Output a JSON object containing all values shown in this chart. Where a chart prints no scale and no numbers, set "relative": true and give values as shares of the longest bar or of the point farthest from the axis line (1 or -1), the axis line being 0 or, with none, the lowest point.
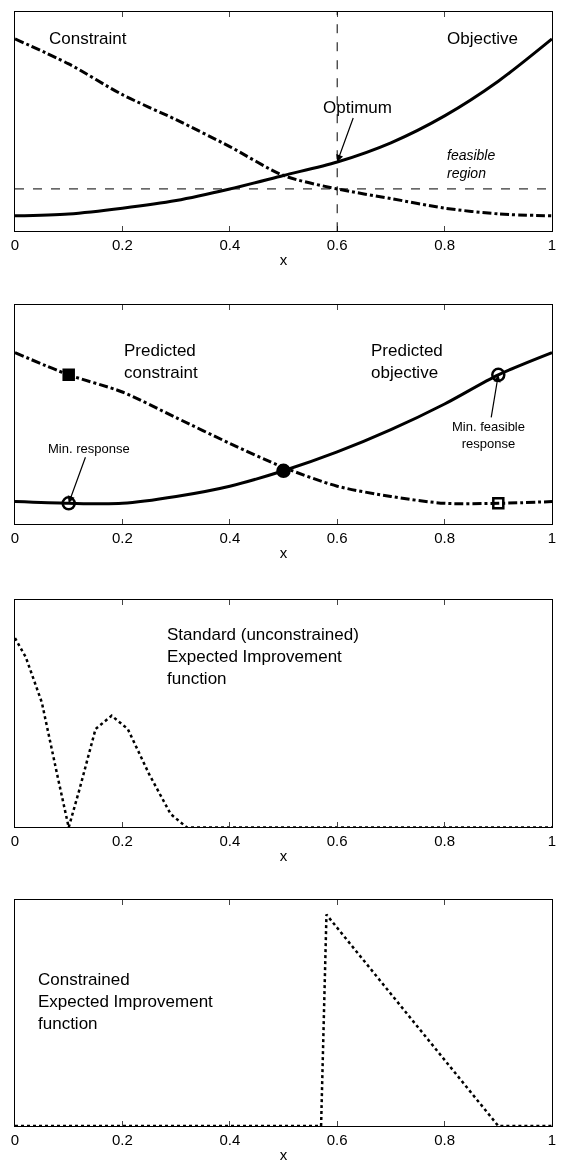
{
  "chart_data": [
    {
      "type": "line",
      "relative": true,
      "xlabel": "x",
      "xlim": [
        0,
        1
      ],
      "xticks": [
        0,
        0.2,
        0.4,
        0.6,
        0.8,
        1
      ],
      "x": [
        0,
        0.1,
        0.2,
        0.3,
        0.4,
        0.5,
        0.6,
        0.7,
        0.8,
        0.9,
        1
      ],
      "series": [
        {
          "name": "Constraint",
          "color": "#000000",
          "line_style": "dashdot",
          "values": [
            1,
            0.87,
            0.71,
            0.58,
            0.44,
            0.29,
            0.22,
            0.17,
            0.12,
            0.09,
            0.08
          ]
        },
        {
          "name": "Objective",
          "color": "#000000",
          "line_style": "solid",
          "values": [
            0.08,
            0.09,
            0.12,
            0.16,
            0.22,
            0.29,
            0.36,
            0.46,
            0.6,
            0.78,
            1
          ]
        }
      ],
      "ref_lines": [
        {
          "axis": "y",
          "value": 0.22,
          "label": "feasible\nregion",
          "line_style": "dashed",
          "color": "#000000"
        },
        {
          "axis": "x",
          "value": 0.6,
          "line_style": "dashed",
          "color": "#000000"
        }
      ],
      "annotations": [
        {
          "text": "Optimum",
          "x": 0.6,
          "y": 0.36
        }
      ]
    },
    {
      "type": "line",
      "relative": true,
      "xlabel": "x",
      "xlim": [
        0,
        1
      ],
      "xticks": [
        0,
        0.2,
        0.4,
        0.6,
        0.8,
        1
      ],
      "x": [
        0,
        0.1,
        0.2,
        0.3,
        0.4,
        0.5,
        0.6,
        0.7,
        0.8,
        0.9,
        1
      ],
      "series": [
        {
          "name": "Predicted\nconstraint",
          "color": "#000000",
          "line_style": "dashdot",
          "values": [
            1,
            0.87,
            0.77,
            0.62,
            0.47,
            0.33,
            0.22,
            0.16,
            0.12,
            0.12,
            0.13
          ]
        },
        {
          "name": "Predicted\nobjective",
          "color": "#000000",
          "line_style": "solid",
          "values": [
            0.13,
            0.12,
            0.12,
            0.16,
            0.22,
            0.31,
            0.42,
            0.55,
            0.7,
            0.87,
            1
          ]
        },
        {
          "type": "scatter",
          "marker": "square",
          "color": "#000000",
          "x": [
            0.1
          ],
          "values": [
            0.87
          ]
        },
        {
          "type": "scatter",
          "marker": "circle",
          "color": "#000000",
          "x": [
            0.5
          ],
          "values": [
            0.31
          ]
        },
        {
          "type": "scatter",
          "marker": "circle-open",
          "color": "#000000",
          "x": [
            0.1,
            0.9
          ],
          "values": [
            0.12,
            0.87
          ]
        },
        {
          "type": "scatter",
          "marker": "square-open",
          "color": "#000000",
          "x": [
            0.9
          ],
          "values": [
            0.12
          ]
        }
      ],
      "annotations": [
        {
          "text": "Min. response",
          "x": 0.1,
          "y": 0.12
        },
        {
          "text": "Min. feasible\nresponse",
          "x": 0.9,
          "y": 0.87
        }
      ]
    },
    {
      "type": "line",
      "relative": true,
      "title": "Standard (unconstrained)\nExpected Improvement\nfunction",
      "xlabel": "x",
      "xlim": [
        0,
        1
      ],
      "xticks": [
        0,
        0.2,
        0.4,
        0.6,
        0.8,
        1
      ],
      "x": [
        0,
        0.02,
        0.05,
        0.08,
        0.1,
        0.12,
        0.15,
        0.18,
        0.21,
        0.25,
        0.29,
        0.32,
        1
      ],
      "series": [
        {
          "color": "#000000",
          "line_style": "dotted",
          "values": [
            1,
            0.9,
            0.66,
            0.26,
            0,
            0.2,
            0.52,
            0.59,
            0.52,
            0.28,
            0.07,
            0,
            0
          ]
        }
      ]
    },
    {
      "type": "line",
      "relative": true,
      "title": "Constrained\nExpected Improvement\nfunction",
      "xlabel": "x",
      "xlim": [
        0,
        1
      ],
      "xticks": [
        0,
        0.2,
        0.4,
        0.6,
        0.8,
        1
      ],
      "x": [
        0,
        0.57,
        0.58,
        0.9,
        1
      ],
      "series": [
        {
          "color": "#000000",
          "line_style": "dotted",
          "values": [
            0,
            0,
            1,
            0,
            0
          ]
        }
      ]
    }
  ]
}
